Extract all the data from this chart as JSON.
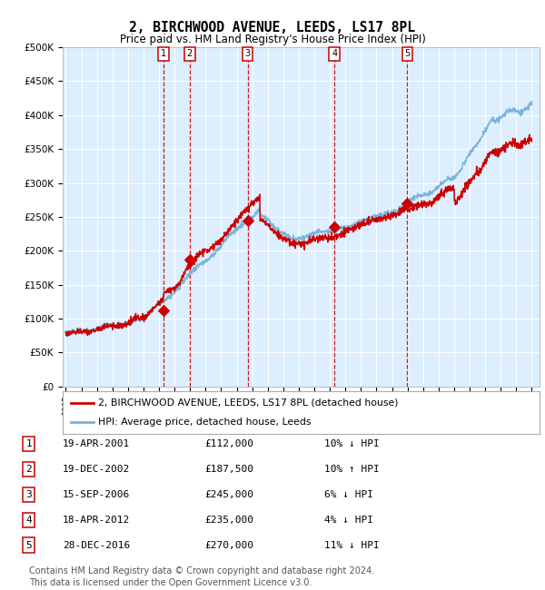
{
  "title": "2, BIRCHWOOD AVENUE, LEEDS, LS17 8PL",
  "subtitle": "Price paid vs. HM Land Registry's House Price Index (HPI)",
  "title_fontsize": 10.5,
  "subtitle_fontsize": 8.5,
  "ylim": [
    0,
    500000
  ],
  "yticks": [
    0,
    50000,
    100000,
    150000,
    200000,
    250000,
    300000,
    350000,
    400000,
    450000,
    500000
  ],
  "bg_color": "#ddeeff",
  "grid_color": "#ffffff",
  "hpi_color": "#7ab3d9",
  "price_color": "#cc0000",
  "dashed_line_color": "#cc0000",
  "purchases": [
    {
      "label": "1",
      "date_str": "19-APR-2001",
      "year": 2001.3,
      "price": 112000,
      "pct": "10%",
      "dir": "↓"
    },
    {
      "label": "2",
      "date_str": "19-DEC-2002",
      "year": 2002.97,
      "price": 187500,
      "pct": "10%",
      "dir": "↑"
    },
    {
      "label": "3",
      "date_str": "15-SEP-2006",
      "year": 2006.71,
      "price": 245000,
      "pct": "6%",
      "dir": "↓"
    },
    {
      "label": "4",
      "date_str": "18-APR-2012",
      "year": 2012.3,
      "price": 235000,
      "pct": "4%",
      "dir": "↓"
    },
    {
      "label": "5",
      "date_str": "28-DEC-2016",
      "year": 2016.99,
      "price": 270000,
      "pct": "11%",
      "dir": "↓"
    }
  ],
  "legend_entries": [
    "2, BIRCHWOOD AVENUE, LEEDS, LS17 8PL (detached house)",
    "HPI: Average price, detached house, Leeds"
  ],
  "footer": "Contains HM Land Registry data © Crown copyright and database right 2024.\nThis data is licensed under the Open Government Licence v3.0.",
  "footer_fontsize": 7.0,
  "xstart": 1995,
  "xend": 2025
}
